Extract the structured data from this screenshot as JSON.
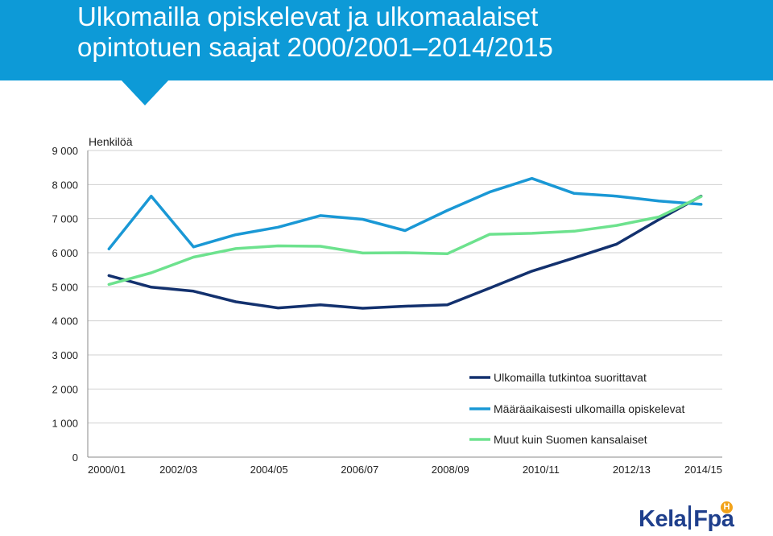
{
  "header": {
    "title_line1": "Ulkomailla opiskelevat ja ulkomaalaiset",
    "title_line2": "opintotuen saajat 2000/2001–2014/2015",
    "color": "#0d9ad7"
  },
  "logo": {
    "kela": "Kela",
    "fpa": "Fpa",
    "mark": "H",
    "color": "#1f3f8c",
    "mark_color": "#f2a31b"
  },
  "chart_data": {
    "type": "line",
    "title": "Ulkomailla opiskelevat ja ulkomaalaiset opintotuen saajat 2000/2001–2014/2015",
    "ylabel": "Henkilöä",
    "xlabel": "",
    "ylim": [
      0,
      9000
    ],
    "y_ticks": [
      0,
      1000,
      2000,
      3000,
      4000,
      5000,
      6000,
      7000,
      8000,
      9000
    ],
    "y_tick_labels": [
      "0",
      "1 000",
      "2 000",
      "3 000",
      "4 000",
      "5 000",
      "6 000",
      "7 000",
      "8 000",
      "9 000"
    ],
    "x_tick_labels": [
      "2000/01",
      "2002/03",
      "2004/05",
      "2006/07",
      "2008/09",
      "2010/11",
      "2012/13",
      "2014/15"
    ],
    "num_points": 15,
    "grid": true,
    "legend_position": "bottom-right",
    "series": [
      {
        "name": "Ulkomailla tutkintoa suorittavat",
        "color": "#13316e",
        "values": [
          5330,
          4990,
          4870,
          4560,
          4380,
          4470,
          4370,
          4430,
          4470,
          4960,
          5460,
          5850,
          6250,
          6970,
          7660
        ]
      },
      {
        "name": "Määräaikaisesti ulkomailla opiskelevat",
        "color": "#1a98d5",
        "values": [
          6110,
          7660,
          6170,
          6530,
          6750,
          7090,
          6980,
          6650,
          7240,
          7780,
          8180,
          7740,
          7660,
          7520,
          7420
        ]
      },
      {
        "name": "Muut kuin Suomen kansalaiset",
        "color": "#6de28e",
        "values": [
          5070,
          5410,
          5870,
          6120,
          6200,
          6190,
          5990,
          6000,
          5970,
          6540,
          6570,
          6630,
          6800,
          7050,
          7650
        ]
      }
    ]
  }
}
